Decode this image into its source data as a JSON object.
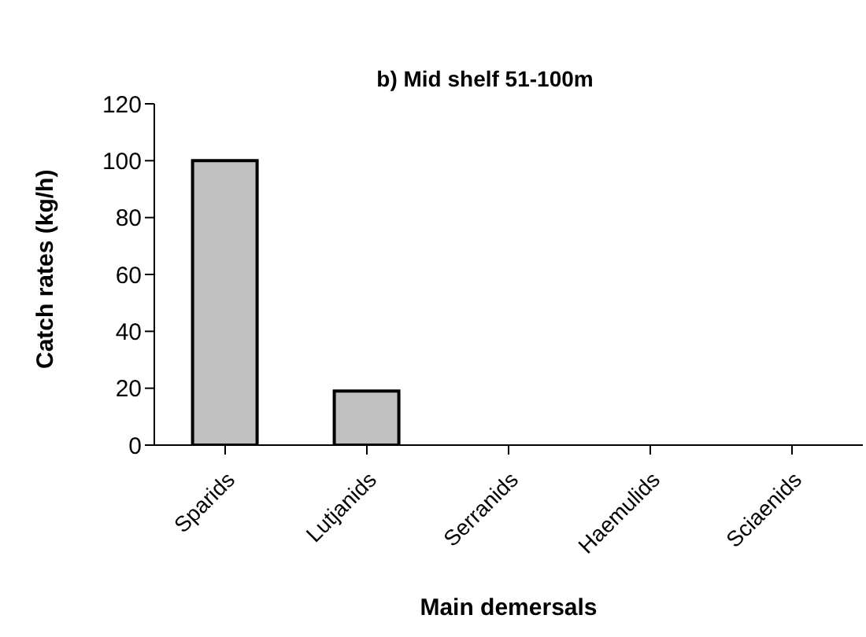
{
  "chart_data": {
    "type": "bar",
    "title": "b) Mid shelf 51-100m",
    "xlabel": "Main demersals",
    "ylabel": "Catch rates (kg/h)",
    "categories": [
      "Sparids",
      "Lutjanids",
      "Serranids",
      "Haemulids",
      "Sciaenids"
    ],
    "values": [
      100,
      19,
      0,
      0,
      0
    ],
    "color": "#c0c0c0",
    "ylim": [
      0,
      120
    ],
    "yticks": [
      0,
      20,
      40,
      60,
      80,
      100,
      120
    ],
    "grid": false,
    "legend": false
  }
}
